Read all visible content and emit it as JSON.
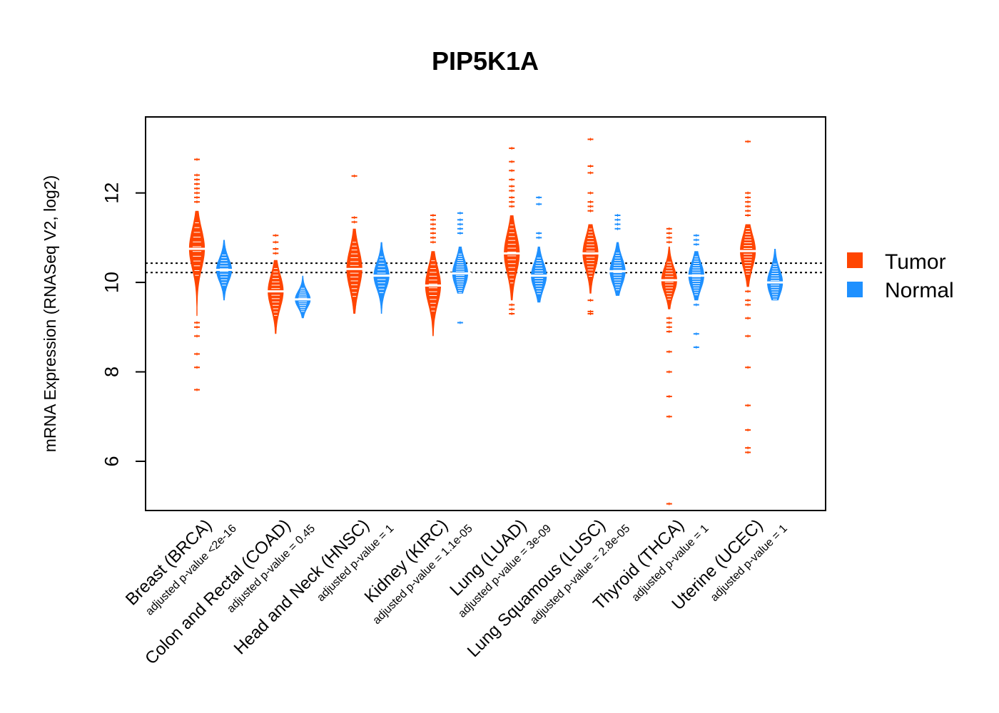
{
  "chart_data": {
    "type": "beanplot",
    "title": "PIP5K1A",
    "ylabel": "mRNA Expression (RNASeq V2, log2)",
    "xlabel": "",
    "ylim": [
      4.9,
      13.7
    ],
    "yticks": [
      6,
      8,
      10,
      12
    ],
    "reference_lines": [
      10.22,
      10.43
    ],
    "legend": {
      "position": "right",
      "entries": [
        "Tumor",
        "Normal"
      ]
    },
    "colors": {
      "Tumor": "#ff4500",
      "Normal": "#1e90ff"
    },
    "categories": [
      {
        "name": "Breast (BRCA)",
        "pvalue": "adjusted p-value <2e-16",
        "tumor": {
          "median": 10.75,
          "min": 9.25,
          "max": 11.6,
          "q1": 10.45,
          "q3": 11.05,
          "outliers": [
            12.75,
            12.4,
            12.3,
            12.2,
            12.1,
            12.0,
            11.9,
            11.8,
            9.1,
            9.0,
            8.8,
            8.4,
            8.1,
            7.6
          ]
        },
        "normal": {
          "median": 10.28,
          "min": 9.6,
          "max": 10.95,
          "q1": 10.1,
          "q3": 10.45,
          "outliers": []
        }
      },
      {
        "name": "Colon and Rectal (COAD)",
        "pvalue": "adjusted p-value = 0.45",
        "tumor": {
          "median": 9.8,
          "min": 8.85,
          "max": 10.5,
          "q1": 9.55,
          "q3": 10.05,
          "outliers": [
            11.05,
            10.9,
            10.75,
            10.65
          ]
        },
        "normal": {
          "median": 9.62,
          "min": 9.2,
          "max": 10.15,
          "q1": 9.5,
          "q3": 9.75,
          "outliers": []
        }
      },
      {
        "name": "Head and Neck (HNSC)",
        "pvalue": "adjusted p-value = 1",
        "tumor": {
          "median": 10.3,
          "min": 9.3,
          "max": 11.2,
          "q1": 10.0,
          "q3": 10.6,
          "outliers": [
            12.38,
            11.45,
            11.35
          ]
        },
        "normal": {
          "median": 10.15,
          "min": 9.3,
          "max": 10.9,
          "q1": 9.95,
          "q3": 10.35,
          "outliers": []
        }
      },
      {
        "name": "Kidney (KIRC)",
        "pvalue": "adjusted p-value = 1.1e-05",
        "tumor": {
          "median": 9.93,
          "min": 8.8,
          "max": 10.7,
          "q1": 9.65,
          "q3": 10.2,
          "outliers": [
            11.5,
            11.4,
            11.3,
            11.2,
            11.1,
            11.0,
            10.9
          ]
        },
        "normal": {
          "median": 10.2,
          "min": 9.75,
          "max": 10.8,
          "q1": 10.0,
          "q3": 10.4,
          "outliers": [
            11.55,
            11.4,
            11.3,
            11.2,
            11.1,
            9.1
          ]
        }
      },
      {
        "name": "Lung (LUAD)",
        "pvalue": "adjusted p-value = 3e-09",
        "tumor": {
          "median": 10.65,
          "min": 9.6,
          "max": 11.5,
          "q1": 10.35,
          "q3": 10.95,
          "outliers": [
            13.0,
            12.7,
            12.5,
            12.3,
            12.15,
            12.05,
            11.9,
            11.8,
            11.7,
            9.5,
            9.4,
            9.3
          ]
        },
        "normal": {
          "median": 10.15,
          "min": 9.55,
          "max": 10.8,
          "q1": 9.95,
          "q3": 10.35,
          "outliers": [
            11.9,
            11.75,
            11.1,
            11.0
          ]
        }
      },
      {
        "name": "Lung Squamous (LUSC)",
        "pvalue": "adjusted p-value = 2.8e-05",
        "tumor": {
          "median": 10.65,
          "min": 9.75,
          "max": 11.3,
          "q1": 10.4,
          "q3": 10.9,
          "outliers": [
            13.2,
            12.6,
            12.45,
            12.0,
            11.8,
            11.7,
            11.6,
            9.6,
            9.35,
            9.3
          ]
        },
        "normal": {
          "median": 10.25,
          "min": 9.7,
          "max": 10.9,
          "q1": 10.05,
          "q3": 10.45,
          "outliers": [
            11.5,
            11.4,
            11.3,
            11.2
          ]
        }
      },
      {
        "name": "Thyroid (THCA)",
        "pvalue": "adjusted p-value = 1",
        "tumor": {
          "median": 10.05,
          "min": 9.4,
          "max": 10.8,
          "q1": 9.85,
          "q3": 10.25,
          "outliers": [
            11.2,
            11.1,
            11.0,
            10.9,
            9.2,
            9.1,
            9.0,
            8.9,
            8.45,
            8.0,
            7.45,
            7.0,
            5.05
          ]
        },
        "normal": {
          "median": 10.15,
          "min": 9.6,
          "max": 10.7,
          "q1": 9.95,
          "q3": 10.35,
          "outliers": [
            11.05,
            10.95,
            10.85,
            9.5,
            8.85,
            8.55
          ]
        }
      },
      {
        "name": "Uterine (UCEC)",
        "pvalue": "adjusted p-value = 1",
        "tumor": {
          "median": 10.7,
          "min": 9.9,
          "max": 11.3,
          "q1": 10.45,
          "q3": 10.95,
          "outliers": [
            13.15,
            12.0,
            11.9,
            11.8,
            11.7,
            11.6,
            11.5,
            9.8,
            9.6,
            9.5,
            9.2,
            8.8,
            8.1,
            7.25,
            6.7,
            6.3,
            6.2
          ]
        },
        "normal": {
          "median": 10.0,
          "min": 9.6,
          "max": 10.75,
          "q1": 9.85,
          "q3": 10.25,
          "outliers": []
        }
      }
    ]
  }
}
